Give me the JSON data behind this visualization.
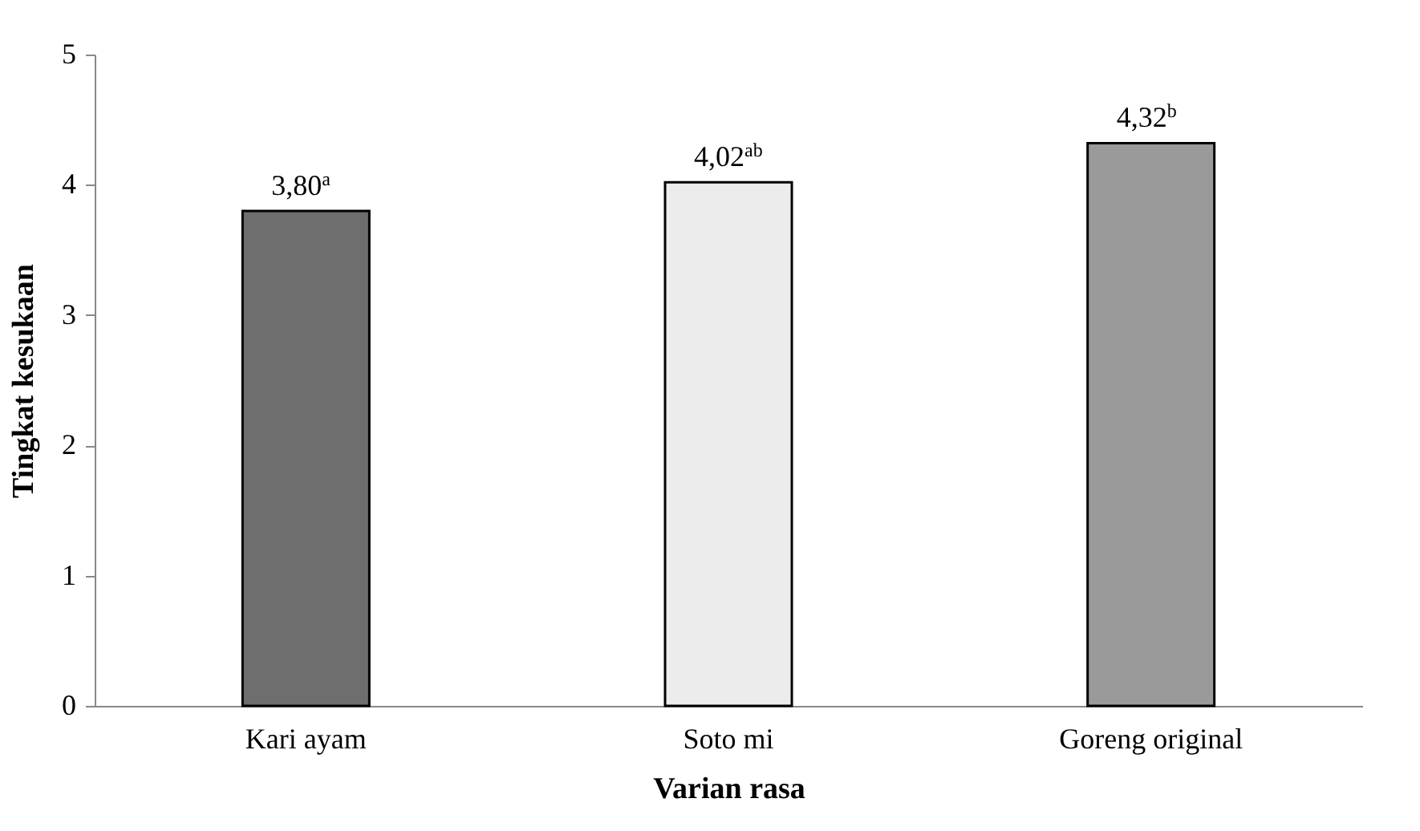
{
  "chart_data": {
    "type": "bar",
    "xlabel": "Varian rasa",
    "ylabel": "Tingkat kesukaan",
    "categories": [
      "Kari ayam",
      "Soto mi",
      "Goreng original"
    ],
    "values": [
      3.8,
      4.02,
      4.32
    ],
    "colors": [
      "#6e6e6e",
      "#ececec",
      "#9a9a9a"
    ],
    "value_labels": [
      "3,80$^{a}$",
      "4,02$^{ab}$",
      "4,32$^{b}$"
    ],
    "ylim": [
      0,
      5
    ],
    "yticks": [
      0,
      1,
      2,
      3,
      4,
      5
    ],
    "grid": false,
    "legend": false
  }
}
